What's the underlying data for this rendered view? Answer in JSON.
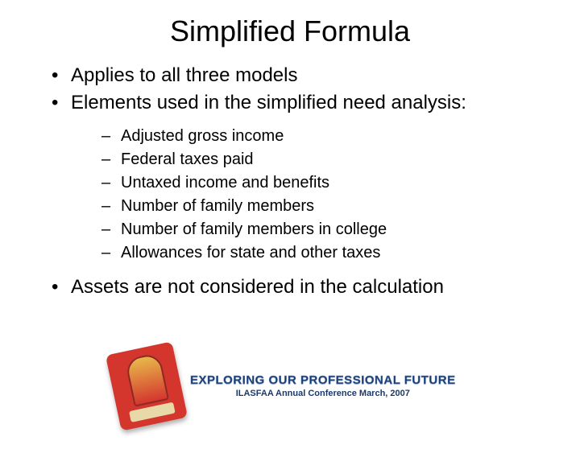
{
  "title": "Simplified Formula",
  "bullets": {
    "b0": "Applies to all three models",
    "b1": "Elements used in the simplified need analysis:",
    "sub": {
      "s0": "Adjusted gross income",
      "s1": "Federal taxes paid",
      "s2": "Untaxed income and benefits",
      "s3": "Number of family members",
      "s4": "Number of family members in college",
      "s5": "Allowances for state and other taxes"
    },
    "b2": "Assets are not considered in the calculation"
  },
  "logo": {
    "main": "EXPLORING OUR PROFESSIONAL FUTURE",
    "sub": "ILASFAA Annual Conference March, 2007"
  },
  "style": {
    "title_fontsize": 36,
    "body_fontsize": 24,
    "sub_fontsize": 20,
    "text_color": "#000000",
    "background_color": "#ffffff",
    "logo_badge_color": "#d4362e",
    "logo_text_color": "#1a3a6e"
  }
}
